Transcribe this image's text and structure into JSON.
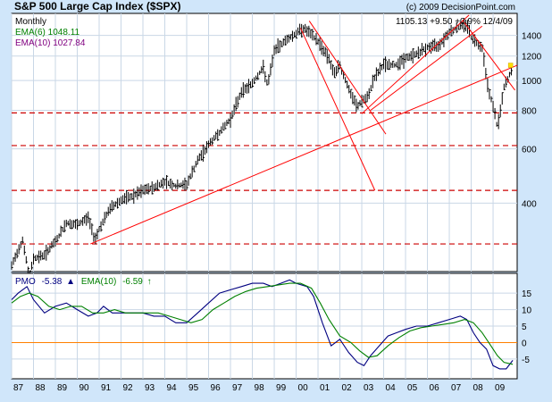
{
  "chart_data": [
    {
      "type": "line",
      "title": "S&P 500 Large Cap Index ($SPX)",
      "credit": "(c) 2009 DecisionPoint.com",
      "period": "Monthly",
      "last_quote": "1105.13 +9.50 +0.9% 12/4/09",
      "scale": "log",
      "ylim": [
        240,
        1650
      ],
      "y_ticks": [
        400,
        600,
        800,
        1000,
        1200,
        1400
      ],
      "y_tick_labels": [
        "400",
        "600",
        "800",
        "1000",
        "1200",
        "1400"
      ],
      "x_ticks": [
        1987,
        1988,
        1989,
        1990,
        1991,
        1992,
        1993,
        1994,
        1995,
        1996,
        1997,
        1998,
        1999,
        2000,
        2001,
        2002,
        2003,
        2004,
        2005,
        2006,
        2007,
        2008,
        2009
      ],
      "x_tick_labels": [
        "87",
        "88",
        "89",
        "90",
        "91",
        "92",
        "93",
        "94",
        "95",
        "96",
        "97",
        "98",
        "99",
        "00",
        "01",
        "02",
        "03",
        "04",
        "05",
        "06",
        "07",
        "08",
        "09"
      ],
      "xlim": [
        1987.0,
        2010.1
      ],
      "grid": true,
      "legend_position": "top-left",
      "series": [
        {
          "name": "S&P 500",
          "legend_label": "",
          "color": "#000000",
          "style": "bar",
          "x": [
            1987.0,
            1987.5,
            1987.8,
            1988.0,
            1988.5,
            1989.0,
            1989.5,
            1990.0,
            1990.5,
            1990.8,
            1991.0,
            1991.5,
            1992.0,
            1992.5,
            1993.0,
            1993.5,
            1994.0,
            1994.5,
            1995.0,
            1995.5,
            1996.0,
            1996.5,
            1997.0,
            1997.5,
            1998.0,
            1998.5,
            1998.7,
            1999.0,
            1999.5,
            2000.0,
            2000.3,
            2000.5,
            2001.0,
            2001.5,
            2001.7,
            2002.0,
            2002.5,
            2002.8,
            2003.0,
            2003.3,
            2003.5,
            2004.0,
            2004.5,
            2005.0,
            2005.5,
            2006.0,
            2006.5,
            2007.0,
            2007.5,
            2007.8,
            2008.0,
            2008.5,
            2008.8,
            2009.0,
            2009.2,
            2009.5,
            2009.9
          ],
          "values": [
            250,
            305,
            230,
            265,
            272,
            300,
            345,
            340,
            360,
            305,
            330,
            385,
            410,
            420,
            440,
            450,
            470,
            455,
            460,
            550,
            620,
            680,
            750,
            920,
            980,
            1100,
            960,
            1250,
            1350,
            1420,
            1480,
            1450,
            1340,
            1180,
            1050,
            1120,
            900,
            820,
            860,
            880,
            1000,
            1130,
            1120,
            1180,
            1220,
            1280,
            1300,
            1440,
            1500,
            1530,
            1380,
            1280,
            920,
            830,
            700,
            950,
            1100
          ]
        },
        {
          "name": "EMA(6)",
          "legend_label": "EMA(6) 1048.11",
          "color": "#008000"
        },
        {
          "name": "EMA(10)",
          "legend_label": "EMA(10) 1027.84",
          "color": "#800080"
        }
      ],
      "horizontal_lines": [
        {
          "y": 295,
          "color": "#cc0000",
          "style": "dashed"
        },
        {
          "y": 440,
          "color": "#cc0000",
          "style": "dashed"
        },
        {
          "y": 615,
          "color": "#cc0000",
          "style": "dashed"
        },
        {
          "y": 785,
          "color": "#cc0000",
          "style": "dashed"
        }
      ],
      "trendlines": [
        {
          "x": [
            1990.6,
            2010.1
          ],
          "y": [
            295,
            1120
          ],
          "color": "#ff0000"
        },
        {
          "x": [
            2000.2,
            2003.6
          ],
          "y": [
            1480,
            440
          ],
          "color": "#ff0000"
        },
        {
          "x": [
            2000.6,
            2004.1
          ],
          "y": [
            1560,
            670
          ],
          "color": "#ff0000"
        },
        {
          "x": [
            2003.0,
            2007.9
          ],
          "y": [
            780,
            1630
          ],
          "color": "#ff0000"
        },
        {
          "x": [
            2003.4,
            2008.5
          ],
          "y": [
            800,
            1500
          ],
          "color": "#ff0000"
        },
        {
          "x": [
            2007.6,
            2010.0
          ],
          "y": [
            1570,
            930
          ],
          "color": "#ff0000"
        }
      ],
      "annotations": [
        {
          "x": 2009.8,
          "y": 1120,
          "text": "",
          "color": "#ffe000",
          "marker": "square"
        }
      ]
    },
    {
      "type": "line",
      "title": "",
      "ylim": [
        -11,
        21
      ],
      "y_ticks": [
        -5,
        0,
        5,
        10,
        15
      ],
      "y_tick_labels": [
        "-5",
        "0",
        "5",
        "10",
        "15"
      ],
      "xlim": [
        1987.0,
        2010.1
      ],
      "grid": true,
      "legend_position": "top-left",
      "zero_line": {
        "y": 0,
        "color": "#ff8000"
      },
      "legend": {
        "pmo_label": "PMO",
        "pmo_value": "-5.38",
        "pmo_arrow": "▲",
        "ema_label": "EMA(10)",
        "ema_value": "-6.59",
        "ema_arrow": "↑"
      },
      "series": [
        {
          "name": "PMO",
          "color": "#000080",
          "x": [
            1987.0,
            1987.3,
            1987.7,
            1988.0,
            1988.5,
            1989.0,
            1989.5,
            1990.0,
            1990.5,
            1990.9,
            1991.2,
            1991.6,
            1992.0,
            1992.5,
            1993.0,
            1993.5,
            1994.0,
            1994.5,
            1995.0,
            1995.5,
            1996.0,
            1996.5,
            1997.0,
            1997.5,
            1998.0,
            1998.5,
            1998.9,
            1999.3,
            1999.7,
            2000.0,
            2000.5,
            2000.8,
            2001.2,
            2001.6,
            2002.0,
            2002.4,
            2002.8,
            2003.1,
            2003.4,
            2003.8,
            2004.2,
            2004.6,
            2005.0,
            2005.5,
            2006.0,
            2006.5,
            2007.0,
            2007.5,
            2007.8,
            2008.1,
            2008.4,
            2008.7,
            2009.0,
            2009.3,
            2009.6,
            2009.9
          ],
          "values": [
            13,
            15,
            17,
            13,
            9,
            11,
            12,
            10,
            8,
            9,
            11,
            9,
            9,
            9,
            9,
            8,
            8,
            6,
            6,
            9,
            12,
            15,
            16,
            17,
            18,
            18,
            17,
            18,
            19,
            18,
            17,
            14,
            6,
            -1,
            1,
            -3,
            -6,
            -7,
            -4,
            -1,
            2,
            3,
            4,
            5,
            5,
            6,
            7,
            8,
            7,
            3,
            0,
            -2,
            -7,
            -8,
            -8,
            -5.4
          ]
        },
        {
          "name": "EMA(10)",
          "color": "#008000",
          "x": [
            1987.0,
            1987.4,
            1987.8,
            1988.2,
            1988.7,
            1989.2,
            1989.7,
            1990.2,
            1990.7,
            1991.2,
            1991.7,
            1992.2,
            1992.7,
            1993.2,
            1993.7,
            1994.2,
            1994.7,
            1995.2,
            1995.7,
            1996.2,
            1996.7,
            1997.2,
            1997.7,
            1998.2,
            1998.7,
            1999.2,
            1999.7,
            2000.2,
            2000.7,
            2001.1,
            2001.5,
            2002.0,
            2002.5,
            2002.9,
            2003.3,
            2003.7,
            2004.2,
            2004.7,
            2005.2,
            2005.7,
            2006.2,
            2006.7,
            2007.2,
            2007.7,
            2008.1,
            2008.5,
            2008.9,
            2009.2,
            2009.5,
            2009.9
          ],
          "values": [
            12,
            14,
            15,
            14,
            11,
            10,
            11,
            11,
            9,
            9,
            10,
            9,
            9,
            9,
            9,
            8,
            7,
            6,
            7,
            10,
            12,
            14,
            15.5,
            16.5,
            17,
            17.5,
            18,
            18,
            16.5,
            12,
            7,
            2,
            0,
            -2.5,
            -4.5,
            -4,
            -1,
            1.5,
            3.5,
            4.5,
            5,
            5.5,
            6,
            7,
            6,
            3,
            -1,
            -4,
            -6,
            -6.6
          ]
        }
      ]
    }
  ]
}
